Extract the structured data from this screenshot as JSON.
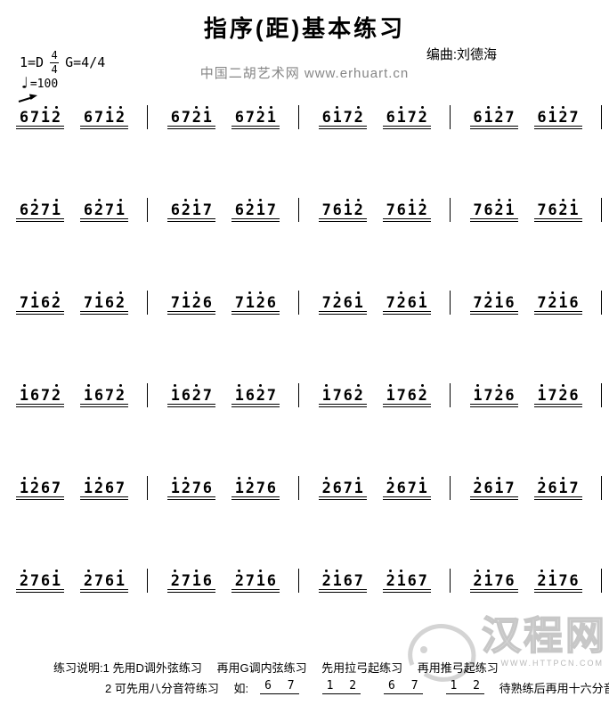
{
  "header": {
    "title": "指序(距)基本练习",
    "composer": "编曲:刘德海",
    "key": "1=D",
    "time_num": "4",
    "time_den": "4",
    "alt_key": "G=4/4",
    "tempo_glyph": "♩",
    "tempo_value": "=100",
    "site": "中国二胡艺术网 www.erhuart.cn"
  },
  "score": {
    "bow_mark": "pull-bow-arrow-right",
    "rows": [
      {
        "measures": [
          {
            "groups": [
              {
                "digits": "6712",
                "dots": [
                  2,
                  3
                ]
              },
              {
                "digits": "6712",
                "dots": [
                  2,
                  3
                ]
              }
            ]
          },
          {
            "groups": [
              {
                "digits": "6721",
                "dots": [
                  2,
                  3
                ]
              },
              {
                "digits": "6721",
                "dots": [
                  2,
                  3
                ]
              }
            ]
          },
          {
            "groups": [
              {
                "digits": "6172",
                "dots": [
                  1,
                  3
                ]
              },
              {
                "digits": "6172",
                "dots": [
                  1,
                  3
                ]
              }
            ]
          },
          {
            "groups": [
              {
                "digits": "6127",
                "dots": [
                  1,
                  2
                ]
              },
              {
                "digits": "6127",
                "dots": [
                  1,
                  2
                ]
              }
            ]
          }
        ]
      },
      {
        "measures": [
          {
            "groups": [
              {
                "digits": "6271",
                "dots": [
                  1,
                  3
                ]
              },
              {
                "digits": "6271",
                "dots": [
                  1,
                  3
                ]
              }
            ]
          },
          {
            "groups": [
              {
                "digits": "6217",
                "dots": [
                  1,
                  2
                ]
              },
              {
                "digits": "6217",
                "dots": [
                  1,
                  2
                ]
              }
            ]
          },
          {
            "groups": [
              {
                "digits": "7612",
                "dots": [
                  2,
                  3
                ]
              },
              {
                "digits": "7612",
                "dots": [
                  2,
                  3
                ]
              }
            ]
          },
          {
            "groups": [
              {
                "digits": "7621",
                "dots": [
                  2,
                  3
                ]
              },
              {
                "digits": "7621",
                "dots": [
                  2,
                  3
                ]
              }
            ]
          }
        ]
      },
      {
        "measures": [
          {
            "groups": [
              {
                "digits": "7162",
                "dots": [
                  1,
                  3
                ]
              },
              {
                "digits": "7162",
                "dots": [
                  1,
                  3
                ]
              }
            ]
          },
          {
            "groups": [
              {
                "digits": "7126",
                "dots": [
                  1,
                  2
                ]
              },
              {
                "digits": "7126",
                "dots": [
                  1,
                  2
                ]
              }
            ]
          },
          {
            "groups": [
              {
                "digits": "7261",
                "dots": [
                  1,
                  3
                ]
              },
              {
                "digits": "7261",
                "dots": [
                  1,
                  3
                ]
              }
            ]
          },
          {
            "groups": [
              {
                "digits": "7216",
                "dots": [
                  1,
                  2
                ]
              },
              {
                "digits": "7216",
                "dots": [
                  1,
                  2
                ]
              }
            ]
          }
        ]
      },
      {
        "measures": [
          {
            "groups": [
              {
                "digits": "1672",
                "dots": [
                  0,
                  3
                ]
              },
              {
                "digits": "1672",
                "dots": [
                  0,
                  3
                ]
              }
            ]
          },
          {
            "groups": [
              {
                "digits": "1627",
                "dots": [
                  0,
                  2
                ]
              },
              {
                "digits": "1627",
                "dots": [
                  0,
                  2
                ]
              }
            ]
          },
          {
            "groups": [
              {
                "digits": "1762",
                "dots": [
                  0,
                  3
                ]
              },
              {
                "digits": "1762",
                "dots": [
                  0,
                  3
                ]
              }
            ]
          },
          {
            "groups": [
              {
                "digits": "1726",
                "dots": [
                  0,
                  2
                ]
              },
              {
                "digits": "1726",
                "dots": [
                  0,
                  2
                ]
              }
            ]
          }
        ]
      },
      {
        "measures": [
          {
            "groups": [
              {
                "digits": "1267",
                "dots": [
                  0,
                  1
                ]
              },
              {
                "digits": "1267",
                "dots": [
                  0,
                  1
                ]
              }
            ]
          },
          {
            "groups": [
              {
                "digits": "1276",
                "dots": [
                  0,
                  1
                ]
              },
              {
                "digits": "1276",
                "dots": [
                  0,
                  1
                ]
              }
            ]
          },
          {
            "groups": [
              {
                "digits": "2671",
                "dots": [
                  0,
                  3
                ]
              },
              {
                "digits": "2671",
                "dots": [
                  0,
                  3
                ]
              }
            ]
          },
          {
            "groups": [
              {
                "digits": "2617",
                "dots": [
                  0,
                  2
                ]
              },
              {
                "digits": "2617",
                "dots": [
                  0,
                  2
                ]
              }
            ]
          }
        ]
      },
      {
        "measures": [
          {
            "groups": [
              {
                "digits": "2761",
                "dots": [
                  0,
                  3
                ]
              },
              {
                "digits": "2761",
                "dots": [
                  0,
                  3
                ]
              }
            ]
          },
          {
            "groups": [
              {
                "digits": "2716",
                "dots": [
                  0,
                  2
                ]
              },
              {
                "digits": "2716",
                "dots": [
                  0,
                  2
                ]
              }
            ]
          },
          {
            "groups": [
              {
                "digits": "2167",
                "dots": [
                  0,
                  1
                ]
              },
              {
                "digits": "2167",
                "dots": [
                  0,
                  1
                ]
              }
            ]
          },
          {
            "groups": [
              {
                "digits": "2176",
                "dots": [
                  0,
                  1
                ]
              },
              {
                "digits": "2176",
                "dots": [
                  0,
                  1
                ]
              }
            ]
          }
        ]
      }
    ]
  },
  "footer": {
    "line1": "练习说明:1 先用D调外弦练习　 再用G调内弦练习　 先用拉弓起练习　 再用推弓起练习",
    "line2_prefix": "2 可先用八分音符练习　 如:",
    "pairs": [
      "6 7",
      "1 2",
      "6 7",
      "1 2"
    ],
    "line2_suffix": " 待熟练后再用十六分音符练习"
  },
  "watermark": {
    "text": "汉程网",
    "url": "WWW.HTTPCN.COM"
  }
}
